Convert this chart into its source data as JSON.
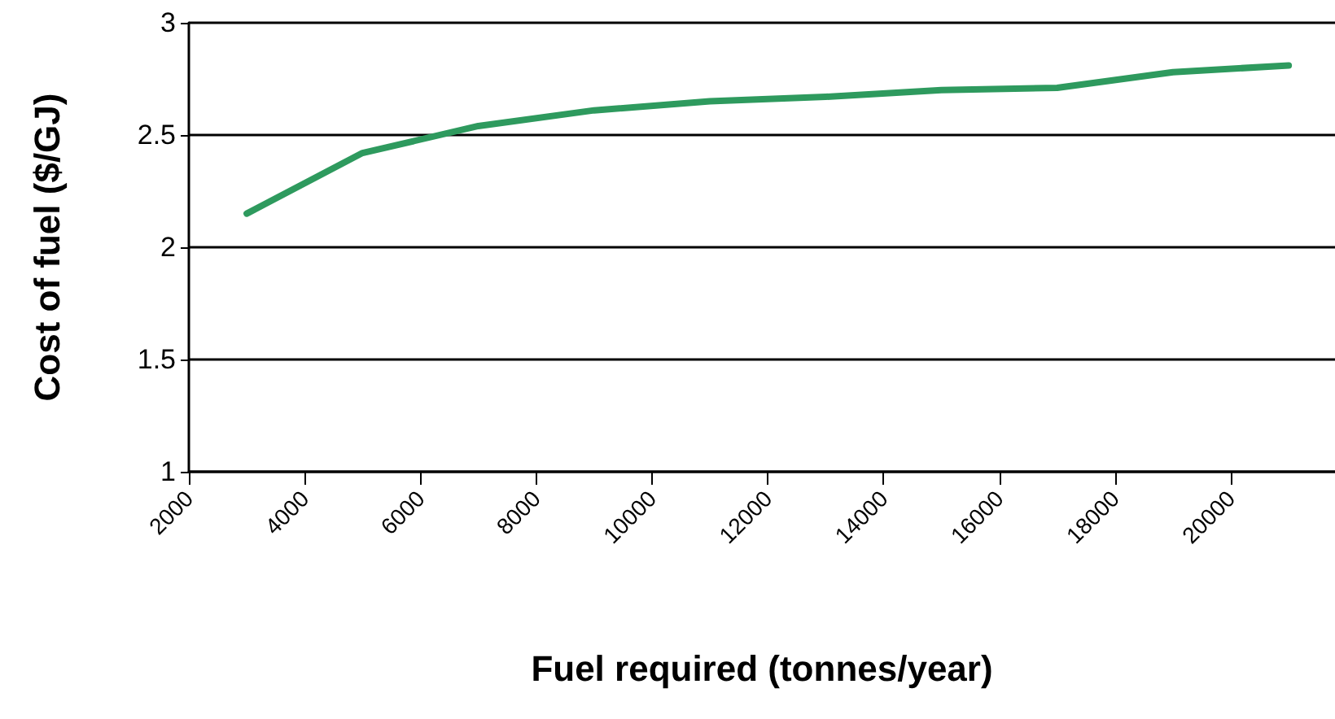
{
  "chart_data": {
    "type": "line",
    "xlabel": "Fuel required (tonnes/year)",
    "ylabel": "Cost of fuel ($/GJ)",
    "x": [
      3000,
      5000,
      7000,
      9000,
      11000,
      13000,
      15000,
      17000,
      19000,
      21000
    ],
    "series": [
      {
        "color": "#2e9a5e",
        "values": [
          2.15,
          2.42,
          2.54,
          2.61,
          2.65,
          2.67,
          2.7,
          2.71,
          2.78,
          2.81
        ]
      }
    ],
    "xlim": [
      2000,
      21800
    ],
    "xticks": [
      2000,
      4000,
      6000,
      8000,
      10000,
      12000,
      14000,
      16000,
      18000,
      20000
    ],
    "ylim": [
      1,
      3
    ],
    "yticks": [
      1,
      1.5,
      2,
      2.5,
      3
    ],
    "grid": "y",
    "marker": "none",
    "line_style": "solid"
  }
}
